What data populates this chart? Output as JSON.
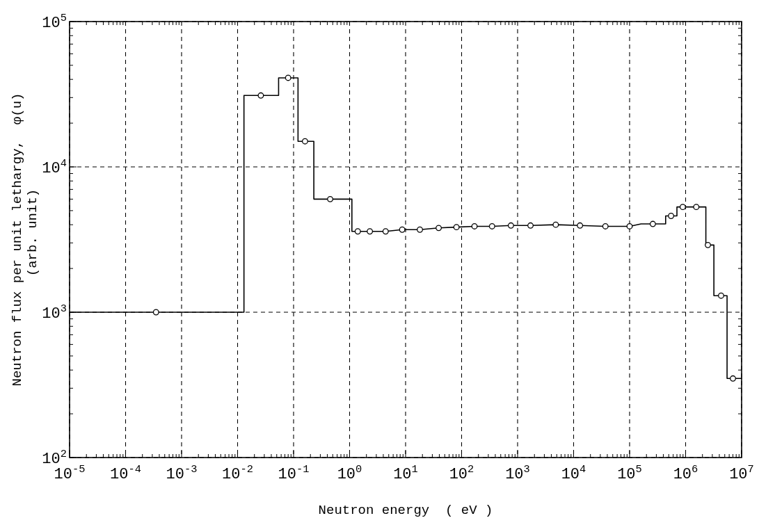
{
  "chart_data": {
    "type": "line",
    "xlabel": "Neutron energy  ( eV )",
    "ylabel": "Neutron flux per unit lethargy,  φ(u)\n(arb. unit)",
    "log": "xy",
    "grid": true,
    "line_style": "dashed",
    "xlim": [
      1e-05,
      10000000
    ],
    "ylim": [
      100,
      100000
    ],
    "xticks": [
      {
        "value": 1e-05,
        "label": "10$^{-5}$"
      },
      {
        "value": 0.0001,
        "label": "10$^{-4}$"
      },
      {
        "value": 0.001,
        "label": "10$^{-3}$"
      },
      {
        "value": 0.01,
        "label": "10$^{-2}$"
      },
      {
        "value": 0.1,
        "label": "10$^{-1}$"
      },
      {
        "value": 1,
        "label": "10$^{0}$"
      },
      {
        "value": 10,
        "label": "10$^{1}$"
      },
      {
        "value": 100,
        "label": "10$^{2}$"
      },
      {
        "value": 1000,
        "label": "10$^{3}$"
      },
      {
        "value": 10000,
        "label": "10$^{4}$"
      },
      {
        "value": 100000,
        "label": "10$^{5}$"
      },
      {
        "value": 1000000,
        "label": "10$^{6}$"
      },
      {
        "value": 10000000,
        "label": "10$^{7}$"
      }
    ],
    "yticks": [
      {
        "value": 100,
        "label": "10$^{2}$"
      },
      {
        "value": 1000,
        "label": "10$^{3}$"
      },
      {
        "value": 10000,
        "label": "10$^{4}$"
      },
      {
        "value": 100000,
        "label": "10$^{5}$"
      }
    ],
    "series": [
      {
        "color": "#000000",
        "marker": "none",
        "line_style": "solid",
        "x": [
          1e-05,
          0.013,
          0.013,
          0.054,
          0.054,
          0.12,
          0.12,
          0.23,
          0.23,
          1.1,
          1.1,
          1.4,
          2.3,
          4.4,
          8.7,
          18,
          39,
          81,
          170,
          350,
          760,
          1700,
          4800,
          13000,
          37000,
          100000,
          160000,
          440000,
          440000,
          700000,
          700000,
          2300000,
          2300000,
          3200000,
          3200000,
          5500000,
          5500000,
          10000000
        ],
        "values": [
          1000,
          1000,
          31000,
          31000,
          41000,
          41000,
          15000,
          15000,
          6000,
          6000,
          3600,
          3600,
          3600,
          3600,
          3700,
          3700,
          3800,
          3850,
          3900,
          3900,
          3950,
          3950,
          4000,
          3950,
          3900,
          3900,
          4050,
          4050,
          4600,
          4600,
          5300,
          5300,
          2900,
          2900,
          1300,
          1300,
          350,
          350
        ]
      },
      {
        "type": "scatter",
        "color": "#000000",
        "marker": "circle",
        "x": [
          0.00035,
          0.026,
          0.08,
          0.16,
          0.45,
          1.4,
          2.3,
          4.4,
          8.7,
          18,
          39,
          81,
          170,
          350,
          760,
          1700,
          4800,
          13000,
          37000,
          100000,
          260000,
          550000,
          890000,
          1550000,
          2500000,
          4300000,
          7000000
        ],
        "values": [
          1000,
          31000,
          41000,
          15000,
          6000,
          3600,
          3600,
          3600,
          3700,
          3700,
          3800,
          3850,
          3900,
          3900,
          3950,
          3950,
          4000,
          3950,
          3900,
          3900,
          4050,
          4600,
          5300,
          5300,
          2900,
          1300,
          350
        ]
      }
    ]
  }
}
